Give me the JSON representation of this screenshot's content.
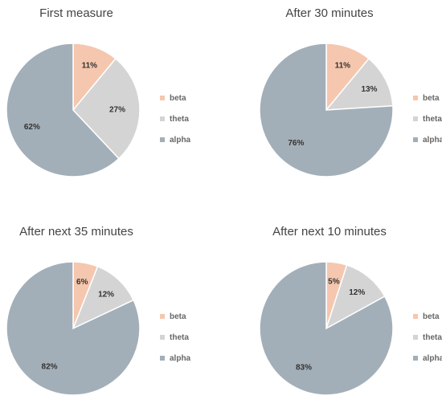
{
  "colors": {
    "beta": "#f5c7ae",
    "theta": "#d4d4d4",
    "alpha": "#a3afb8"
  },
  "chart_data": [
    {
      "type": "pie",
      "title": "First measure",
      "labels": [
        "beta",
        "theta",
        "alpha"
      ],
      "values": [
        11,
        27,
        62
      ],
      "value_labels": [
        "11%",
        "27%",
        "62%"
      ],
      "legend": "right"
    },
    {
      "type": "pie",
      "title": "After 30 minutes",
      "labels": [
        "beta",
        "theta",
        "alpha"
      ],
      "values": [
        11,
        13,
        76
      ],
      "value_labels": [
        "11%",
        "13%",
        "76%"
      ],
      "legend": "right"
    },
    {
      "type": "pie",
      "title": "After next 35 minutes",
      "labels": [
        "beta",
        "theta",
        "alpha"
      ],
      "values": [
        6,
        12,
        82
      ],
      "value_labels": [
        "6%",
        "12%",
        "82%"
      ],
      "legend": "right"
    },
    {
      "type": "pie",
      "title": "After next 10 minutes",
      "labels": [
        "beta",
        "theta",
        "alpha"
      ],
      "values": [
        5,
        12,
        83
      ],
      "value_labels": [
        "5%",
        "12%",
        "83%"
      ],
      "legend": "right"
    }
  ]
}
